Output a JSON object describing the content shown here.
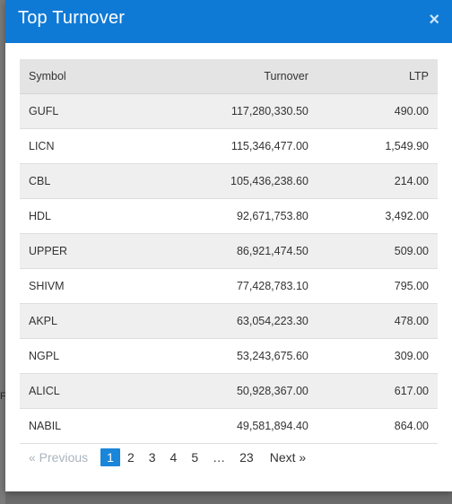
{
  "modal": {
    "title": "Top Turnover",
    "close_icon": "×"
  },
  "backdrop": {
    "glyph": "F"
  },
  "table": {
    "headers": {
      "symbol": "Symbol",
      "turnover": "Turnover",
      "ltp": "LTP"
    },
    "rows": [
      {
        "symbol": "GUFL",
        "turnover": "117,280,330.50",
        "ltp": "490.00"
      },
      {
        "symbol": "LICN",
        "turnover": "115,346,477.00",
        "ltp": "1,549.90"
      },
      {
        "symbol": "CBL",
        "turnover": "105,436,238.60",
        "ltp": "214.00"
      },
      {
        "symbol": "HDL",
        "turnover": "92,671,753.80",
        "ltp": "3,492.00"
      },
      {
        "symbol": "UPPER",
        "turnover": "86,921,474.50",
        "ltp": "509.00"
      },
      {
        "symbol": "SHIVM",
        "turnover": "77,428,783.10",
        "ltp": "795.00"
      },
      {
        "symbol": "AKPL",
        "turnover": "63,054,223.30",
        "ltp": "478.00"
      },
      {
        "symbol": "NGPL",
        "turnover": "53,243,675.60",
        "ltp": "309.00"
      },
      {
        "symbol": "ALICL",
        "turnover": "50,928,367.00",
        "ltp": "617.00"
      },
      {
        "symbol": "NABIL",
        "turnover": "49,581,894.40",
        "ltp": "864.00"
      }
    ]
  },
  "pagination": {
    "prev": "«  Previous",
    "pages": [
      "1",
      "2",
      "3",
      "4",
      "5"
    ],
    "ellipsis": "…",
    "last": "23",
    "next": "Next  »",
    "active": "1"
  }
}
